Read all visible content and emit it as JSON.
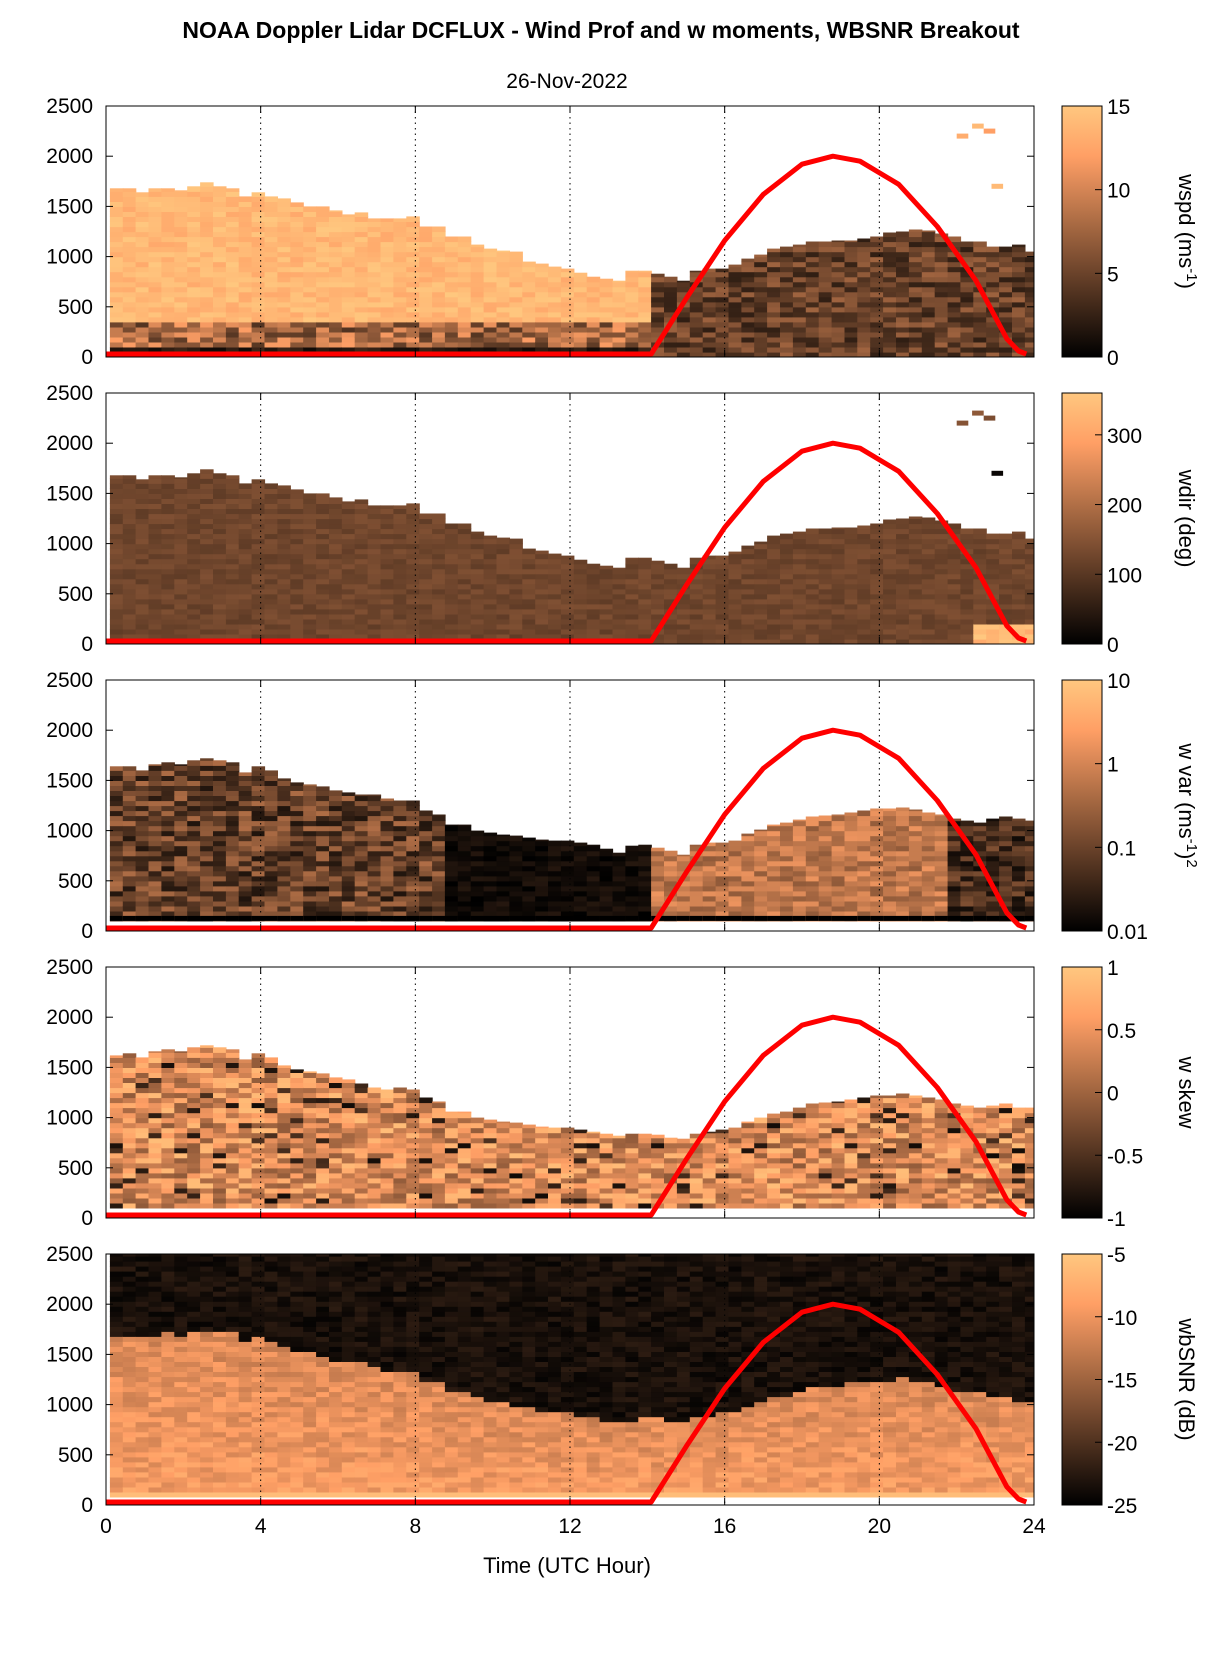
{
  "figure": {
    "title": "NOAA Doppler Lidar DCFLUX - Wind Prof and w moments, WBSNR Breakout",
    "subtitle": "26-Nov-2022",
    "xlabel": "Time (UTC Hour)"
  },
  "chart_data": [
    {
      "type": "heatmap",
      "variable": "wspd",
      "xlim": [
        0,
        24
      ],
      "x_ticks": [
        0,
        4,
        8,
        12,
        16,
        20,
        24
      ],
      "ylim": [
        0,
        2500
      ],
      "y_ticks": [
        0,
        500,
        1000,
        1500,
        2000,
        2500
      ],
      "colorbar": {
        "label": "wspd (ms",
        "label_sup": "-1",
        "label_suffix": ")",
        "scale": "linear",
        "range": [
          0,
          15
        ],
        "ticks": [
          0,
          5,
          10,
          15
        ]
      },
      "data_top_height_m": [
        1680,
        1680,
        1640,
        1680,
        1680,
        1660,
        1700,
        1740,
        1700,
        1680,
        1600,
        1640,
        1600,
        1580,
        1540,
        1500,
        1500,
        1460,
        1420,
        1440,
        1380,
        1380,
        1380,
        1400,
        1300,
        1300,
        1200,
        1200,
        1120,
        1080,
        1060,
        1050,
        950,
        930,
        900,
        880,
        840,
        800,
        780,
        760,
        860,
        860,
        830,
        800,
        760,
        860,
        880,
        880,
        920,
        980,
        1020,
        1080,
        1100,
        1120,
        1150,
        1150,
        1160,
        1160,
        1180,
        1200,
        1240,
        1250,
        1270,
        1260,
        1230,
        1200,
        1150,
        1150,
        1100,
        1100,
        1120,
        1050
      ],
      "time_start_h": 0.1,
      "time_step_h": 0.3333,
      "sparse_points": [
        {
          "x": 22.0,
          "y": 2200,
          "value": 13
        },
        {
          "x": 22.4,
          "y": 2300,
          "value": 14
        },
        {
          "x": 22.7,
          "y": 2250,
          "value": 12
        },
        {
          "x": 22.9,
          "y": 1700,
          "value": 14
        }
      ],
      "series": [
        {
          "name": "",
          "type": "line",
          "color": "#ff0000",
          "x": [
            0,
            2,
            4,
            6,
            8,
            10,
            12,
            14,
            14.1,
            15,
            16,
            17,
            18,
            18.8,
            19.5,
            20.5,
            21.5,
            22.5,
            23.3,
            23.6,
            23.8
          ],
          "y": [
            30,
            30,
            30,
            30,
            30,
            30,
            30,
            30,
            30,
            580,
            1160,
            1620,
            1920,
            2000,
            1950,
            1720,
            1300,
            760,
            180,
            60,
            30
          ]
        }
      ]
    },
    {
      "type": "heatmap",
      "variable": "wdir",
      "xlim": [
        0,
        24
      ],
      "x_ticks": [
        0,
        4,
        8,
        12,
        16,
        20,
        24
      ],
      "ylim": [
        0,
        2500
      ],
      "y_ticks": [
        0,
        500,
        1000,
        1500,
        2000,
        2500
      ],
      "colorbar": {
        "label": "wdir (deg)",
        "scale": "linear",
        "range": [
          0,
          360
        ],
        "ticks": [
          0,
          100,
          200,
          300
        ]
      },
      "data_top_height_m": [
        1680,
        1680,
        1640,
        1680,
        1680,
        1660,
        1700,
        1740,
        1700,
        1680,
        1600,
        1640,
        1600,
        1580,
        1540,
        1500,
        1500,
        1460,
        1420,
        1440,
        1380,
        1380,
        1380,
        1400,
        1300,
        1300,
        1200,
        1200,
        1120,
        1080,
        1060,
        1050,
        950,
        930,
        900,
        880,
        840,
        800,
        780,
        760,
        860,
        860,
        830,
        800,
        760,
        860,
        880,
        880,
        920,
        980,
        1020,
        1080,
        1100,
        1120,
        1150,
        1150,
        1160,
        1160,
        1180,
        1200,
        1240,
        1250,
        1270,
        1260,
        1230,
        1200,
        1150,
        1150,
        1100,
        1100,
        1120,
        1050
      ],
      "time_start_h": 0.1,
      "time_step_h": 0.3333,
      "sparse_points": [
        {
          "x": 22.0,
          "y": 2200,
          "value": 150
        },
        {
          "x": 22.4,
          "y": 2300,
          "value": 160
        },
        {
          "x": 22.7,
          "y": 2250,
          "value": 140
        },
        {
          "x": 22.9,
          "y": 1700,
          "value": 10
        }
      ],
      "series": [
        {
          "name": "",
          "type": "line",
          "color": "#ff0000",
          "x": [
            0,
            2,
            4,
            6,
            8,
            10,
            12,
            14,
            14.1,
            15,
            16,
            17,
            18,
            18.8,
            19.5,
            20.5,
            21.5,
            22.5,
            23.3,
            23.6,
            23.8
          ],
          "y": [
            30,
            30,
            30,
            30,
            30,
            30,
            30,
            30,
            30,
            580,
            1160,
            1620,
            1920,
            2000,
            1950,
            1720,
            1300,
            760,
            180,
            60,
            30
          ]
        }
      ]
    },
    {
      "type": "heatmap",
      "variable": "w var",
      "xlim": [
        0,
        24
      ],
      "x_ticks": [
        0,
        4,
        8,
        12,
        16,
        20,
        24
      ],
      "ylim": [
        0,
        2500
      ],
      "y_ticks": [
        0,
        500,
        1000,
        1500,
        2000,
        2500
      ],
      "colorbar": {
        "label": "w var (ms",
        "label_sup": "-1",
        "label_suffix": ")",
        "label_sup2": "2",
        "scale": "log",
        "range": [
          0.01,
          10
        ],
        "ticks": [
          0.01,
          0.1,
          1,
          10
        ],
        "tick_labels": [
          "0.01",
          "0.1",
          "1",
          "10"
        ]
      },
      "data_top_height_m": [
        1640,
        1640,
        1600,
        1660,
        1680,
        1660,
        1700,
        1720,
        1700,
        1680,
        1580,
        1640,
        1600,
        1520,
        1480,
        1460,
        1440,
        1400,
        1380,
        1360,
        1360,
        1320,
        1300,
        1300,
        1200,
        1160,
        1060,
        1060,
        1000,
        980,
        960,
        950,
        930,
        910,
        900,
        900,
        880,
        860,
        820,
        780,
        850,
        860,
        830,
        800,
        760,
        860,
        880,
        880,
        900,
        970,
        1010,
        1060,
        1080,
        1110,
        1140,
        1150,
        1160,
        1180,
        1200,
        1220,
        1220,
        1230,
        1210,
        1180,
        1160,
        1120,
        1100,
        1080,
        1120,
        1140,
        1120,
        1100
      ],
      "time_start_h": 0.1,
      "time_step_h": 0.3333,
      "series": [
        {
          "name": "",
          "type": "line",
          "color": "#ff0000",
          "x": [
            0,
            2,
            4,
            6,
            8,
            10,
            12,
            14,
            14.1,
            15,
            16,
            17,
            18,
            18.8,
            19.5,
            20.5,
            21.5,
            22.5,
            23.3,
            23.6,
            23.8
          ],
          "y": [
            30,
            30,
            30,
            30,
            30,
            30,
            30,
            30,
            30,
            580,
            1160,
            1620,
            1920,
            2000,
            1950,
            1720,
            1300,
            760,
            180,
            60,
            30
          ]
        }
      ]
    },
    {
      "type": "heatmap",
      "variable": "w skew",
      "xlim": [
        0,
        24
      ],
      "x_ticks": [
        0,
        4,
        8,
        12,
        16,
        20,
        24
      ],
      "ylim": [
        0,
        2500
      ],
      "y_ticks": [
        0,
        500,
        1000,
        1500,
        2000,
        2500
      ],
      "colorbar": {
        "label": "w skew",
        "scale": "linear",
        "range": [
          -1,
          1
        ],
        "ticks": [
          -1,
          -0.5,
          0,
          0.5,
          1
        ]
      },
      "data_top_height_m": [
        1620,
        1640,
        1600,
        1660,
        1680,
        1660,
        1700,
        1720,
        1700,
        1680,
        1580,
        1640,
        1600,
        1520,
        1480,
        1460,
        1440,
        1400,
        1380,
        1340,
        1300,
        1280,
        1300,
        1280,
        1200,
        1160,
        1060,
        1060,
        1000,
        980,
        960,
        950,
        930,
        910,
        900,
        900,
        880,
        860,
        840,
        820,
        840,
        840,
        830,
        800,
        790,
        840,
        860,
        880,
        900,
        960,
        1000,
        1040,
        1060,
        1100,
        1140,
        1150,
        1160,
        1180,
        1200,
        1220,
        1220,
        1240,
        1220,
        1200,
        1180,
        1140,
        1120,
        1100,
        1120,
        1140,
        1100,
        1100
      ],
      "time_start_h": 0.1,
      "time_step_h": 0.3333,
      "series": [
        {
          "name": "",
          "type": "line",
          "color": "#ff0000",
          "x": [
            0,
            2,
            4,
            6,
            8,
            10,
            12,
            14,
            14.1,
            15,
            16,
            17,
            18,
            18.8,
            19.5,
            20.5,
            21.5,
            22.5,
            23.3,
            23.6,
            23.8
          ],
          "y": [
            30,
            30,
            30,
            30,
            30,
            30,
            30,
            30,
            30,
            580,
            1160,
            1620,
            1920,
            2000,
            1950,
            1720,
            1300,
            760,
            180,
            60,
            30
          ]
        }
      ]
    },
    {
      "type": "heatmap",
      "variable": "wbSNR",
      "xlim": [
        0,
        24
      ],
      "x_ticks": [
        0,
        4,
        8,
        12,
        16,
        20,
        24
      ],
      "ylim": [
        0,
        2500
      ],
      "y_ticks": [
        0,
        500,
        1000,
        1500,
        2000,
        2500
      ],
      "colorbar": {
        "label": "wbSNR (dB)",
        "scale": "linear",
        "range": [
          -25,
          -5
        ],
        "ticks": [
          -25,
          -20,
          -15,
          -10,
          -5
        ]
      },
      "data_top_height_m": [
        1640,
        1660,
        1640,
        1670,
        1680,
        1660,
        1700,
        1700,
        1700,
        1680,
        1600,
        1640,
        1600,
        1540,
        1500,
        1480,
        1460,
        1420,
        1400,
        1380,
        1360,
        1320,
        1300,
        1300,
        1220,
        1180,
        1100,
        1080,
        1040,
        1000,
        980,
        960,
        940,
        920,
        900,
        880,
        860,
        840,
        820,
        800,
        820,
        840,
        830,
        820,
        800,
        840,
        860,
        880,
        900,
        960,
        1000,
        1040,
        1060,
        1100,
        1140,
        1150,
        1160,
        1180,
        1200,
        1220,
        1220,
        1230,
        1210,
        1180,
        1160,
        1120,
        1100,
        1080,
        1060,
        1040,
        1020,
        1000
      ],
      "time_start_h": 0.1,
      "time_step_h": 0.3333,
      "x_tick_labels_visible": true,
      "series": [
        {
          "name": "",
          "type": "line",
          "color": "#ff0000",
          "x": [
            0,
            2,
            4,
            6,
            8,
            10,
            12,
            14,
            14.1,
            15,
            16,
            17,
            18,
            18.8,
            19.5,
            20.5,
            21.5,
            22.5,
            23.3,
            23.6,
            23.8
          ],
          "y": [
            30,
            30,
            30,
            30,
            30,
            30,
            30,
            30,
            30,
            580,
            1160,
            1620,
            1920,
            2000,
            1950,
            1720,
            1300,
            760,
            180,
            60,
            30
          ]
        }
      ]
    }
  ],
  "colors": {
    "copper_low": "#000000",
    "copper_high": "#ffc77f",
    "sun_line": "#ff0000",
    "grid": "#000000"
  }
}
